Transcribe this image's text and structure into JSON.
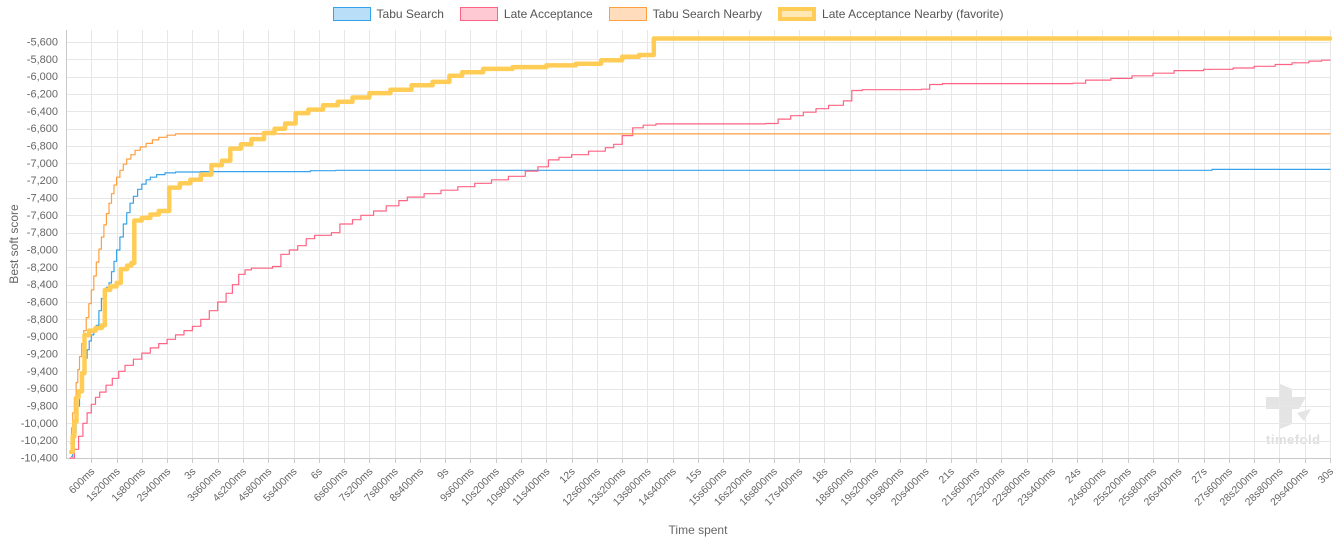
{
  "watermark": "timefold",
  "chart_data": {
    "type": "line",
    "step": true,
    "xlabel": "Time spent",
    "ylabel": "Best soft score",
    "xlim": [
      0,
      30
    ],
    "x_tick_step": 0.6,
    "ylim": [
      -10400,
      -5600
    ],
    "y_tick_step": 200,
    "grid": true,
    "legend_position": "top",
    "x_tick_labels": [
      "600ms",
      "1s200ms",
      "1s800ms",
      "2s400ms",
      "3s",
      "3s600ms",
      "4s200ms",
      "4s800ms",
      "5s400ms",
      "6s",
      "6s600ms",
      "7s200ms",
      "7s800ms",
      "8s400ms",
      "9s",
      "9s600ms",
      "10s200ms",
      "10s800ms",
      "11s400ms",
      "12s",
      "12s600ms",
      "13s200ms",
      "13s800ms",
      "14s400ms",
      "15s",
      "15s600ms",
      "16s200ms",
      "16s800ms",
      "17s400ms",
      "18s",
      "18s600ms",
      "19s200ms",
      "19s800ms",
      "20s400ms",
      "21s",
      "21s600ms",
      "22s200ms",
      "22s800ms",
      "23s400ms",
      "24s",
      "24s600ms",
      "25s200ms",
      "25s800ms",
      "26s400ms",
      "27s",
      "27s600ms",
      "28s200ms",
      "28s800ms",
      "29s400ms",
      "30s"
    ],
    "y_tick_labels": [
      "-5,600",
      "-5,800",
      "-6,000",
      "-6,200",
      "-6,400",
      "-6,600",
      "-6,800",
      "-7,000",
      "-7,200",
      "-7,400",
      "-7,600",
      "-7,800",
      "-8,000",
      "-8,200",
      "-8,400",
      "-8,600",
      "-8,800",
      "-9,000",
      "-9,200",
      "-9,400",
      "-9,600",
      "-9,800",
      "-10,000",
      "-10,200",
      "-10,400"
    ],
    "series": [
      {
        "name": "Tabu Search",
        "slug": "tabu-search",
        "color": "#36A2EB",
        "fill": "rgba(54,162,235,0.35)",
        "line_width": 1.2,
        "legend_border_width": 1,
        "points": [
          [
            0.13,
            -10380
          ],
          [
            0.16,
            -10250
          ],
          [
            0.2,
            -10100
          ],
          [
            0.24,
            -9950
          ],
          [
            0.28,
            -9800
          ],
          [
            0.32,
            -9650
          ],
          [
            0.36,
            -9500
          ],
          [
            0.4,
            -9380
          ],
          [
            0.45,
            -9250
          ],
          [
            0.5,
            -9150
          ],
          [
            0.55,
            -9050
          ],
          [
            0.6,
            -8980
          ],
          [
            0.66,
            -8920
          ],
          [
            0.72,
            -8870
          ],
          [
            0.78,
            -8700
          ],
          [
            0.84,
            -8560
          ],
          [
            0.9,
            -8480
          ],
          [
            0.96,
            -8430
          ],
          [
            1.02,
            -8380
          ],
          [
            1.08,
            -8250
          ],
          [
            1.14,
            -8130
          ],
          [
            1.2,
            -8000
          ],
          [
            1.28,
            -7850
          ],
          [
            1.36,
            -7700
          ],
          [
            1.44,
            -7570
          ],
          [
            1.52,
            -7460
          ],
          [
            1.6,
            -7380
          ],
          [
            1.7,
            -7300
          ],
          [
            1.8,
            -7240
          ],
          [
            1.9,
            -7190
          ],
          [
            2.0,
            -7160
          ],
          [
            2.15,
            -7130
          ],
          [
            2.35,
            -7110
          ],
          [
            2.6,
            -7100
          ],
          [
            3.2,
            -7095
          ],
          [
            5.8,
            -7085
          ],
          [
            6.4,
            -7080
          ],
          [
            27.2,
            -7070
          ],
          [
            30,
            -7070
          ]
        ]
      },
      {
        "name": "Late Acceptance",
        "slug": "late-acceptance",
        "color": "#FF6384",
        "fill": "rgba(255,99,132,0.35)",
        "line_width": 1.2,
        "legend_border_width": 1,
        "points": [
          [
            0.1,
            -10400
          ],
          [
            0.2,
            -10300
          ],
          [
            0.3,
            -10150
          ],
          [
            0.4,
            -10000
          ],
          [
            0.5,
            -9880
          ],
          [
            0.6,
            -9780
          ],
          [
            0.7,
            -9700
          ],
          [
            0.8,
            -9640
          ],
          [
            0.95,
            -9560
          ],
          [
            1.1,
            -9480
          ],
          [
            1.25,
            -9400
          ],
          [
            1.4,
            -9330
          ],
          [
            1.6,
            -9260
          ],
          [
            1.8,
            -9190
          ],
          [
            2.0,
            -9130
          ],
          [
            2.2,
            -9080
          ],
          [
            2.4,
            -9030
          ],
          [
            2.6,
            -8980
          ],
          [
            2.8,
            -8930
          ],
          [
            3.0,
            -8880
          ],
          [
            3.2,
            -8800
          ],
          [
            3.4,
            -8700
          ],
          [
            3.6,
            -8600
          ],
          [
            3.8,
            -8500
          ],
          [
            3.95,
            -8400
          ],
          [
            4.1,
            -8280
          ],
          [
            4.25,
            -8230
          ],
          [
            4.4,
            -8210
          ],
          [
            4.9,
            -8190
          ],
          [
            5.1,
            -8050
          ],
          [
            5.3,
            -8000
          ],
          [
            5.5,
            -7950
          ],
          [
            5.7,
            -7870
          ],
          [
            5.9,
            -7830
          ],
          [
            6.3,
            -7800
          ],
          [
            6.5,
            -7700
          ],
          [
            6.8,
            -7650
          ],
          [
            7.0,
            -7600
          ],
          [
            7.3,
            -7550
          ],
          [
            7.6,
            -7490
          ],
          [
            7.9,
            -7430
          ],
          [
            8.1,
            -7390
          ],
          [
            8.5,
            -7350
          ],
          [
            8.9,
            -7310
          ],
          [
            9.3,
            -7270
          ],
          [
            9.7,
            -7230
          ],
          [
            10.1,
            -7190
          ],
          [
            10.5,
            -7150
          ],
          [
            10.9,
            -7090
          ],
          [
            11.2,
            -7040
          ],
          [
            11.45,
            -6960
          ],
          [
            11.7,
            -6930
          ],
          [
            12.0,
            -6900
          ],
          [
            12.4,
            -6860
          ],
          [
            12.8,
            -6820
          ],
          [
            13.0,
            -6780
          ],
          [
            13.2,
            -6680
          ],
          [
            13.45,
            -6590
          ],
          [
            13.7,
            -6560
          ],
          [
            14.0,
            -6545
          ],
          [
            16.6,
            -6540
          ],
          [
            16.9,
            -6490
          ],
          [
            17.2,
            -6450
          ],
          [
            17.5,
            -6410
          ],
          [
            17.8,
            -6370
          ],
          [
            18.1,
            -6330
          ],
          [
            18.45,
            -6280
          ],
          [
            18.65,
            -6160
          ],
          [
            18.9,
            -6150
          ],
          [
            20.3,
            -6145
          ],
          [
            20.5,
            -6090
          ],
          [
            20.8,
            -6080
          ],
          [
            23.9,
            -6075
          ],
          [
            24.2,
            -6040
          ],
          [
            24.8,
            -6020
          ],
          [
            25.3,
            -5990
          ],
          [
            25.8,
            -5960
          ],
          [
            26.3,
            -5930
          ],
          [
            27.0,
            -5915
          ],
          [
            27.7,
            -5900
          ],
          [
            28.2,
            -5880
          ],
          [
            28.7,
            -5860
          ],
          [
            29.1,
            -5840
          ],
          [
            29.5,
            -5820
          ],
          [
            29.8,
            -5810
          ],
          [
            30,
            -5810
          ]
        ]
      },
      {
        "name": "Tabu Search Nearby",
        "slug": "tabu-search-nearby",
        "color": "#FF9F40",
        "fill": "rgba(255,159,64,0.35)",
        "line_width": 1.2,
        "legend_border_width": 1,
        "points": [
          [
            0.1,
            -10230
          ],
          [
            0.13,
            -10050
          ],
          [
            0.16,
            -9880
          ],
          [
            0.2,
            -9700
          ],
          [
            0.24,
            -9530
          ],
          [
            0.28,
            -9380
          ],
          [
            0.32,
            -9230
          ],
          [
            0.37,
            -9080
          ],
          [
            0.42,
            -8930
          ],
          [
            0.48,
            -8780
          ],
          [
            0.54,
            -8620
          ],
          [
            0.6,
            -8460
          ],
          [
            0.66,
            -8300
          ],
          [
            0.72,
            -8140
          ],
          [
            0.78,
            -7990
          ],
          [
            0.84,
            -7850
          ],
          [
            0.9,
            -7710
          ],
          [
            0.96,
            -7580
          ],
          [
            1.02,
            -7460
          ],
          [
            1.08,
            -7350
          ],
          [
            1.14,
            -7250
          ],
          [
            1.2,
            -7160
          ],
          [
            1.28,
            -7080
          ],
          [
            1.36,
            -7010
          ],
          [
            1.44,
            -6950
          ],
          [
            1.54,
            -6900
          ],
          [
            1.64,
            -6850
          ],
          [
            1.76,
            -6810
          ],
          [
            1.9,
            -6770
          ],
          [
            2.05,
            -6730
          ],
          [
            2.2,
            -6700
          ],
          [
            2.4,
            -6675
          ],
          [
            2.6,
            -6660
          ],
          [
            30,
            -6660
          ]
        ]
      },
      {
        "name": "Late Acceptance Nearby (favorite)",
        "slug": "late-acceptance-nearby-favorite",
        "color": "#FFCD56",
        "fill": "rgba(255,205,86,0.45)",
        "line_width": 4.5,
        "legend_border_width": 4,
        "points": [
          [
            0.12,
            -10330
          ],
          [
            0.16,
            -10150
          ],
          [
            0.2,
            -9980
          ],
          [
            0.25,
            -9700
          ],
          [
            0.3,
            -9630
          ],
          [
            0.38,
            -9420
          ],
          [
            0.44,
            -8980
          ],
          [
            0.55,
            -8930
          ],
          [
            0.7,
            -8900
          ],
          [
            0.85,
            -8870
          ],
          [
            0.92,
            -8460
          ],
          [
            1.05,
            -8420
          ],
          [
            1.2,
            -8380
          ],
          [
            1.3,
            -8220
          ],
          [
            1.45,
            -8180
          ],
          [
            1.55,
            -8150
          ],
          [
            1.62,
            -7660
          ],
          [
            1.8,
            -7630
          ],
          [
            2.0,
            -7590
          ],
          [
            2.2,
            -7550
          ],
          [
            2.45,
            -7280
          ],
          [
            2.7,
            -7230
          ],
          [
            2.95,
            -7190
          ],
          [
            3.2,
            -7130
          ],
          [
            3.45,
            -7020
          ],
          [
            3.7,
            -6970
          ],
          [
            3.9,
            -6830
          ],
          [
            4.15,
            -6780
          ],
          [
            4.4,
            -6720
          ],
          [
            4.7,
            -6650
          ],
          [
            4.95,
            -6600
          ],
          [
            5.2,
            -6540
          ],
          [
            5.45,
            -6420
          ],
          [
            5.75,
            -6380
          ],
          [
            6.1,
            -6330
          ],
          [
            6.45,
            -6290
          ],
          [
            6.8,
            -6240
          ],
          [
            7.2,
            -6190
          ],
          [
            7.7,
            -6150
          ],
          [
            8.2,
            -6100
          ],
          [
            8.7,
            -6060
          ],
          [
            9.1,
            -5990
          ],
          [
            9.4,
            -5950
          ],
          [
            9.9,
            -5910
          ],
          [
            10.6,
            -5890
          ],
          [
            11.4,
            -5870
          ],
          [
            12.1,
            -5850
          ],
          [
            12.7,
            -5810
          ],
          [
            13.2,
            -5770
          ],
          [
            13.6,
            -5750
          ],
          [
            13.95,
            -5560
          ],
          [
            30,
            -5560
          ]
        ]
      }
    ]
  }
}
